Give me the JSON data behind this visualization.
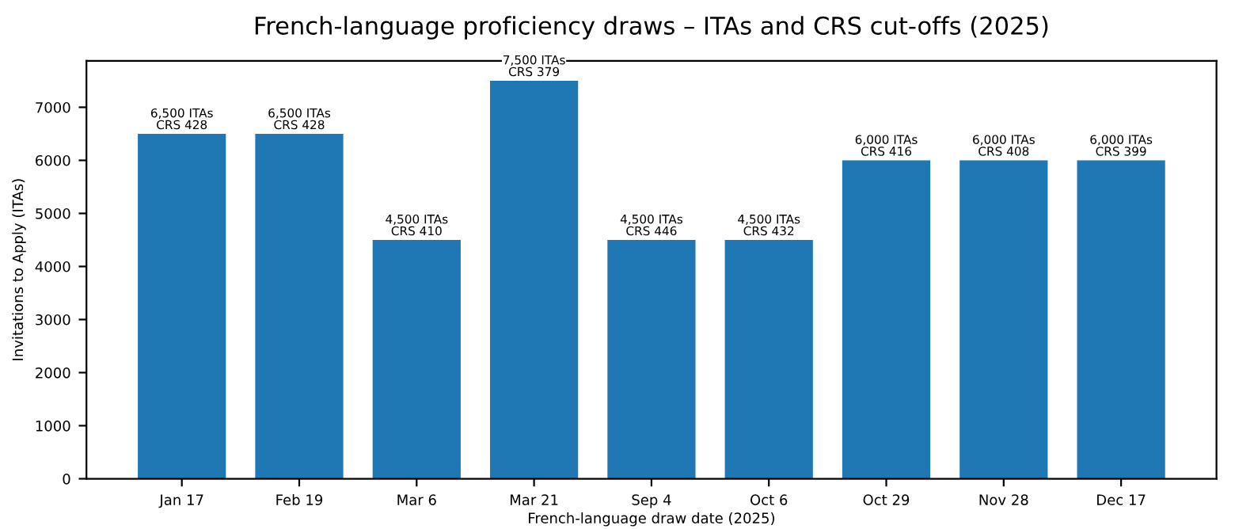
{
  "chart_data": {
    "type": "bar",
    "title": "French-language proficiency draws – ITAs and CRS cut-offs (2025)",
    "xlabel": "French-language draw date (2025)",
    "ylabel": "Invitations to Apply (ITAs)",
    "categories": [
      "Jan 17",
      "Feb 19",
      "Mar 6",
      "Mar 21",
      "Sep 4",
      "Oct 6",
      "Oct 29",
      "Nov 28",
      "Dec 17"
    ],
    "values": [
      6500,
      6500,
      4500,
      7500,
      4500,
      4500,
      6000,
      6000,
      6000
    ],
    "value_labels": [
      "6,500 ITAs\nCRS 428",
      "6,500 ITAs\nCRS 428",
      "4,500 ITAs\nCRS 410",
      "7,500 ITAs\nCRS 379",
      "4,500 ITAs\nCRS 446",
      "4,500 ITAs\nCRS 432",
      "6,000 ITAs\nCRS 416",
      "6,000 ITAs\nCRS 408",
      "6,000 ITAs\nCRS 399"
    ],
    "color": "#1f77b4",
    "ylim": [
      0,
      7875
    ],
    "yticks": [
      0,
      1000,
      2000,
      3000,
      4000,
      5000,
      6000,
      7000
    ],
    "grid": false,
    "legend": false
  }
}
